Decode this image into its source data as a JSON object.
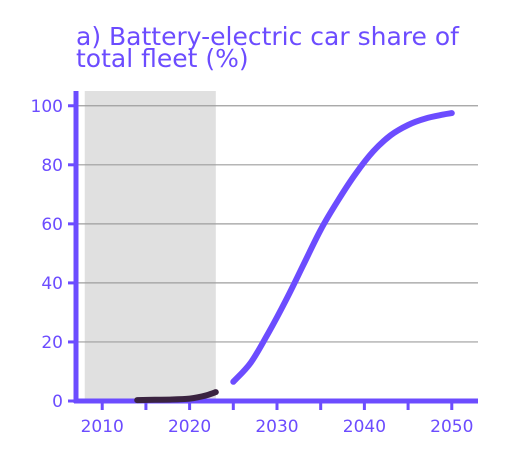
{
  "chart_data": {
    "type": "line",
    "title_lines": [
      "a) Battery-electric car share of",
      "total fleet (%)"
    ],
    "xlabel": "",
    "ylabel": "",
    "xlim": [
      2007,
      2053
    ],
    "ylim": [
      0,
      105
    ],
    "x_ticks": [
      2010,
      2020,
      2030,
      2040,
      2050
    ],
    "x_minor_ticks": [
      2015,
      2025,
      2035,
      2045
    ],
    "y_ticks": [
      0,
      20,
      40,
      60,
      80,
      100
    ],
    "grid": "horizontal",
    "shaded_region": {
      "x": [
        2008,
        2023
      ],
      "color": "#e0e0e0"
    },
    "series": [
      {
        "color": "#3a2340",
        "x": [
          2014,
          2016,
          2018,
          2020,
          2021,
          2022,
          2023
        ],
        "y": [
          0.3,
          0.4,
          0.5,
          0.8,
          1.3,
          2.0,
          3.0
        ]
      },
      {
        "color": "#6c4cff",
        "x": [
          2025,
          2027,
          2029,
          2031,
          2033,
          2035,
          2037,
          2039,
          2041,
          2043,
          2045,
          2047,
          2049,
          2050
        ],
        "y": [
          6.5,
          13,
          23,
          34,
          46,
          58,
          68,
          77,
          84.5,
          90,
          93.5,
          95.7,
          97,
          97.5
        ]
      }
    ],
    "colors": {
      "accent": "#6c4cff",
      "gridline": "#9e9e9e"
    }
  }
}
